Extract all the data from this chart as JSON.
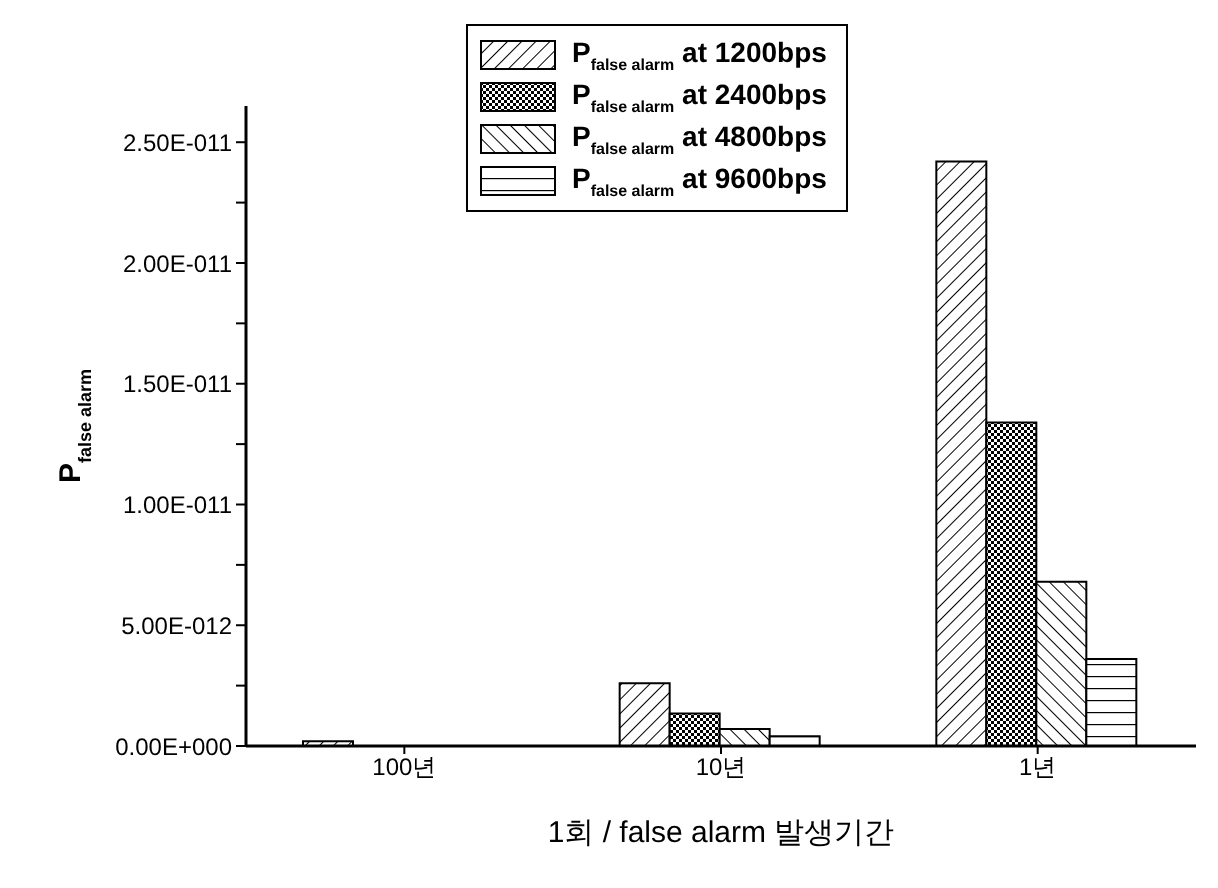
{
  "chart_data": {
    "type": "bar",
    "xlabel": "1회 / false alarm 발생기간",
    "ylabel": "P$_{false alarm}$",
    "categories": [
      "100년",
      "10년",
      "1년"
    ],
    "series": [
      {
        "name": "P$_{false alarm}$ at 1200bps",
        "color": "#000000",
        "values": [
          2e-13,
          2.6e-12,
          2.42e-11
        ]
      },
      {
        "name": "P$_{false alarm}$ at 2400bps",
        "color": "#000000",
        "values": [
          null,
          1.35e-12,
          1.34e-11
        ]
      },
      {
        "name": "P$_{false alarm}$ at 4800bps",
        "color": "#000000",
        "values": [
          null,
          7e-13,
          6.8e-12
        ]
      },
      {
        "name": "P$_{false alarm}$ at 9600bps",
        "color": "#000000",
        "values": [
          null,
          4e-13,
          3.6e-12
        ]
      }
    ],
    "ylim": [
      0,
      2.65e-11
    ],
    "yticks": [
      {
        "value": 0,
        "label": "0.00E+000"
      },
      {
        "value": 2.5e-12,
        "label": null
      },
      {
        "value": 5e-12,
        "label": "5.00E-012"
      },
      {
        "value": 7.5e-12,
        "label": null
      },
      {
        "value": 1e-11,
        "label": "1.00E-011"
      },
      {
        "value": 1.25e-11,
        "label": null
      },
      {
        "value": 1.5e-11,
        "label": "1.50E-011"
      },
      {
        "value": 1.75e-11,
        "label": null
      },
      {
        "value": 2e-11,
        "label": "2.00E-011"
      },
      {
        "value": 2.25e-11,
        "label": null
      },
      {
        "value": 2.5e-11,
        "label": "2.50E-011"
      }
    ],
    "legend": "top",
    "grid": false
  }
}
